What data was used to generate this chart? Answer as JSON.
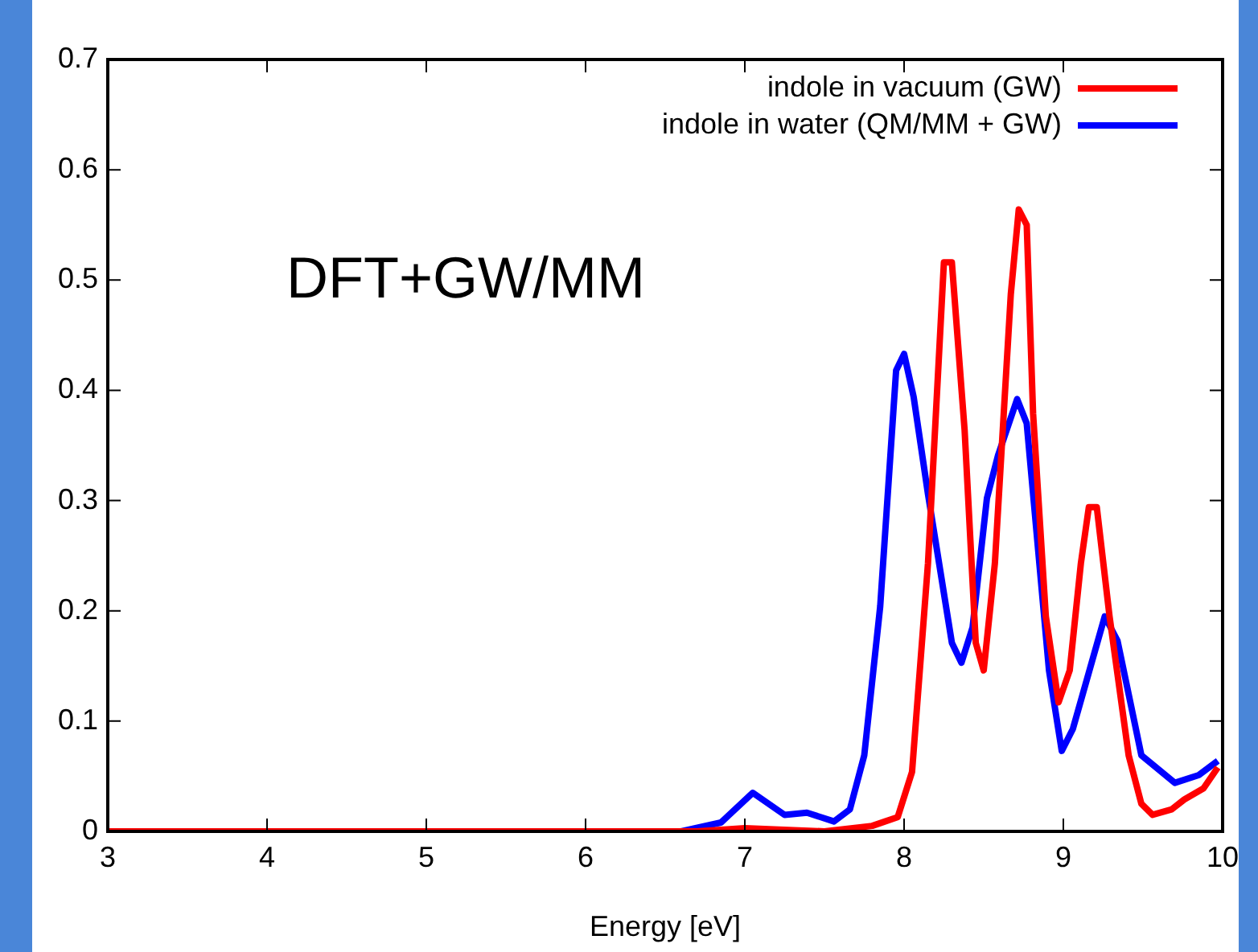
{
  "chart_data": {
    "type": "line",
    "xlabel": "Energy [eV]",
    "annotations": [
      "DFT+GW/MM"
    ],
    "xlim": [
      3,
      10
    ],
    "xticks": [
      3,
      4,
      5,
      6,
      7,
      8,
      9,
      10
    ],
    "ylim": [
      0,
      0.7
    ],
    "yticks": [
      0,
      0.1,
      0.2,
      0.3,
      0.4,
      0.5,
      0.6,
      0.7
    ],
    "grid": false,
    "legend": "top right",
    "marker": "none",
    "line_style": "solid",
    "series": [
      {
        "name": "indole in vacuum (GW)",
        "color": "#ff0000",
        "x": [
          3,
          6.7,
          7.0,
          7.5,
          7.8,
          7.96,
          8.05,
          8.15,
          8.25,
          8.3,
          8.38,
          8.45,
          8.5,
          8.57,
          8.67,
          8.72,
          8.77,
          8.81,
          8.89,
          8.97,
          9.04,
          9.11,
          9.16,
          9.21,
          9.29,
          9.41,
          9.49,
          9.56,
          9.68,
          9.76,
          9.88,
          9.97
        ],
        "values": [
          0,
          0,
          0.003,
          0,
          0.005,
          0.013,
          0.054,
          0.243,
          0.516,
          0.516,
          0.364,
          0.171,
          0.146,
          0.243,
          0.487,
          0.564,
          0.55,
          0.379,
          0.195,
          0.117,
          0.146,
          0.243,
          0.294,
          0.294,
          0.195,
          0.069,
          0.025,
          0.015,
          0.02,
          0.029,
          0.039,
          0.058
        ]
      },
      {
        "name": "indole in water (QM/MM + GW)",
        "color": "#0000ff",
        "x": [
          3,
          6.6,
          6.85,
          7.05,
          7.25,
          7.39,
          7.56,
          7.66,
          7.75,
          7.85,
          7.95,
          8.0,
          8.06,
          8.15,
          8.3,
          8.36,
          8.43,
          8.52,
          8.59,
          8.71,
          8.77,
          8.91,
          8.99,
          9.06,
          9.26,
          9.34,
          9.49,
          9.7,
          9.85,
          9.97
        ],
        "values": [
          0,
          0,
          0.008,
          0.035,
          0.015,
          0.017,
          0.009,
          0.02,
          0.069,
          0.204,
          0.418,
          0.433,
          0.394,
          0.306,
          0.171,
          0.153,
          0.185,
          0.302,
          0.341,
          0.392,
          0.37,
          0.146,
          0.073,
          0.093,
          0.195,
          0.173,
          0.069,
          0.044,
          0.051,
          0.064
        ]
      }
    ]
  }
}
